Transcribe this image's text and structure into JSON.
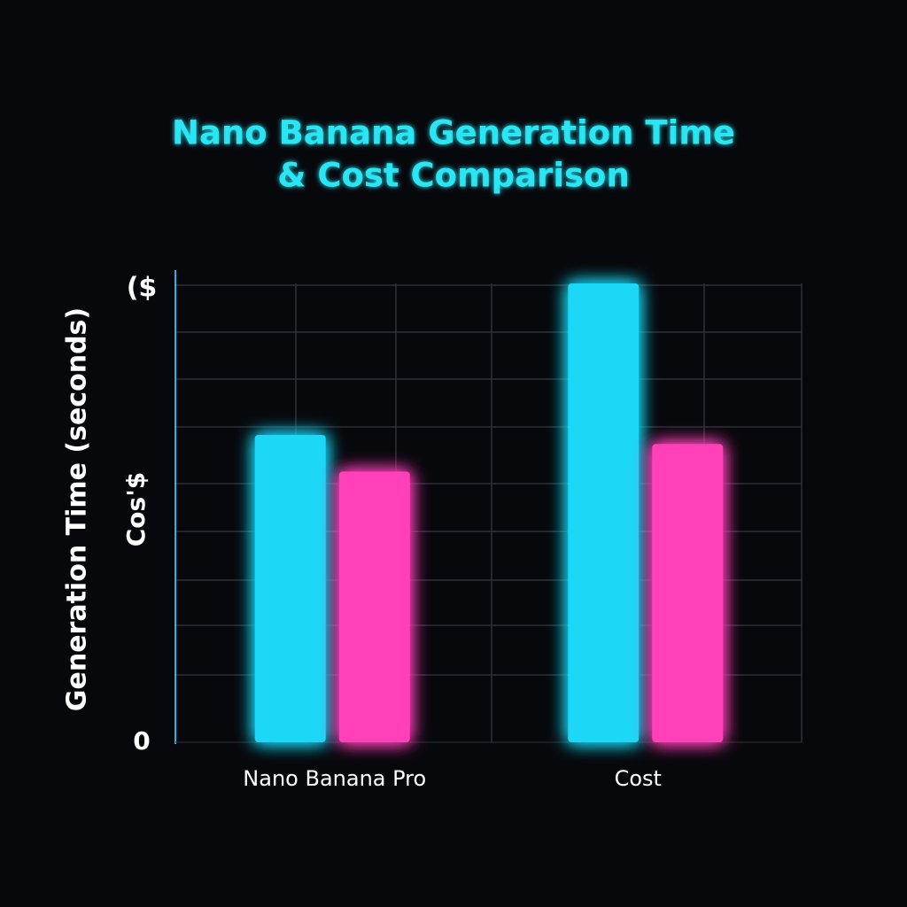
{
  "chart_data": {
    "type": "bar",
    "title": [
      "Nano Banana Generation Time",
      "& Cost Comparison"
    ],
    "y_label": "Generation Time (seconds)",
    "annotations": [
      "($",
      "Cos'$"
    ],
    "categories": [
      "Nano Banana Pro",
      "Cost"
    ],
    "series": [
      {
        "color": "#1ad8f6",
        "values": [
          6.7,
          10.0
        ]
      },
      {
        "color": "#ff40b9",
        "values": [
          5.9,
          6.5
        ]
      }
    ],
    "ylim": [
      0,
      10
    ],
    "yticks": [
      0
    ],
    "grid": true
  }
}
